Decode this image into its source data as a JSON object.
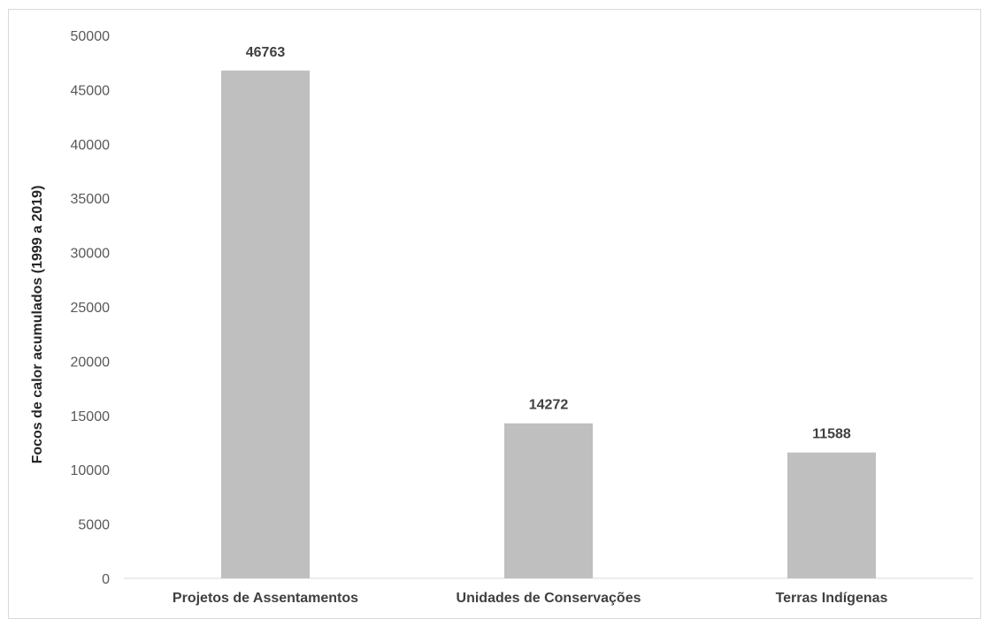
{
  "chart_data": {
    "type": "bar",
    "title": "",
    "xlabel": "",
    "ylabel": "Focos de calor acumulados (1999 a 2019)",
    "categories": [
      "Projetos de Assentamentos",
      "Unidades de Conservações",
      "Terras Indígenas"
    ],
    "values": [
      46763,
      14272,
      11588
    ],
    "data_labels": [
      "46763",
      "14272",
      "11588"
    ],
    "ylim": [
      0,
      50000
    ],
    "yticks": [
      0,
      5000,
      10000,
      15000,
      20000,
      25000,
      30000,
      35000,
      40000,
      45000,
      50000
    ],
    "ytick_labels": [
      "0",
      "5000",
      "10000",
      "15000",
      "20000",
      "25000",
      "30000",
      "35000",
      "40000",
      "45000",
      "50000"
    ],
    "grid": false,
    "legend": "none",
    "bar_color": "#bfbfbf"
  }
}
